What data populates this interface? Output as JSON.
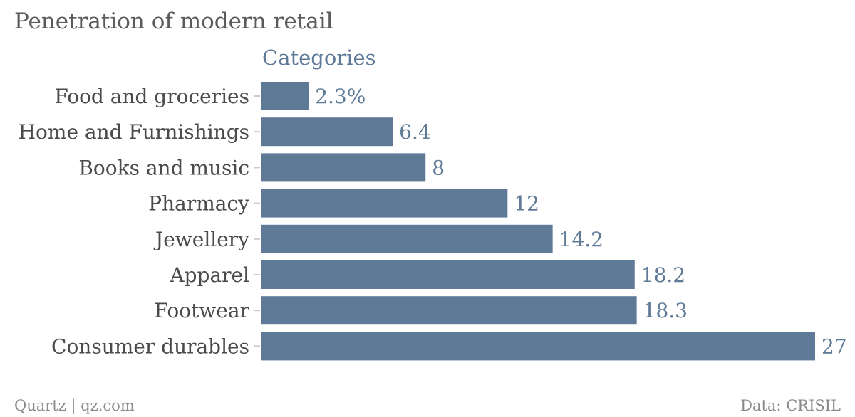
{
  "chart_data": {
    "type": "bar",
    "orientation": "horizontal",
    "title": "Penetration of modern retail",
    "series_label": "Categories",
    "categories": [
      "Food and groceries",
      "Home and Furnishings",
      "Books and music",
      "Pharmacy",
      "Jewellery",
      "Apparel",
      "Footwear",
      "Consumer durables"
    ],
    "values": [
      2.3,
      6.4,
      8,
      12,
      14.2,
      18.2,
      18.3,
      27
    ],
    "value_labels": [
      "2.3%",
      "6.4",
      "8",
      "12",
      "14.2",
      "18.2",
      "18.3",
      "27"
    ],
    "xlim": [
      0,
      27
    ],
    "grid": false,
    "colors": {
      "bar": "#5e7a97",
      "value_label": "#5e7a97",
      "category_label": "#4a4a4a",
      "tick": "#cccccc"
    }
  },
  "footer": {
    "source_left": "Quartz | qz.com",
    "source_right": "Data: CRISIL"
  }
}
